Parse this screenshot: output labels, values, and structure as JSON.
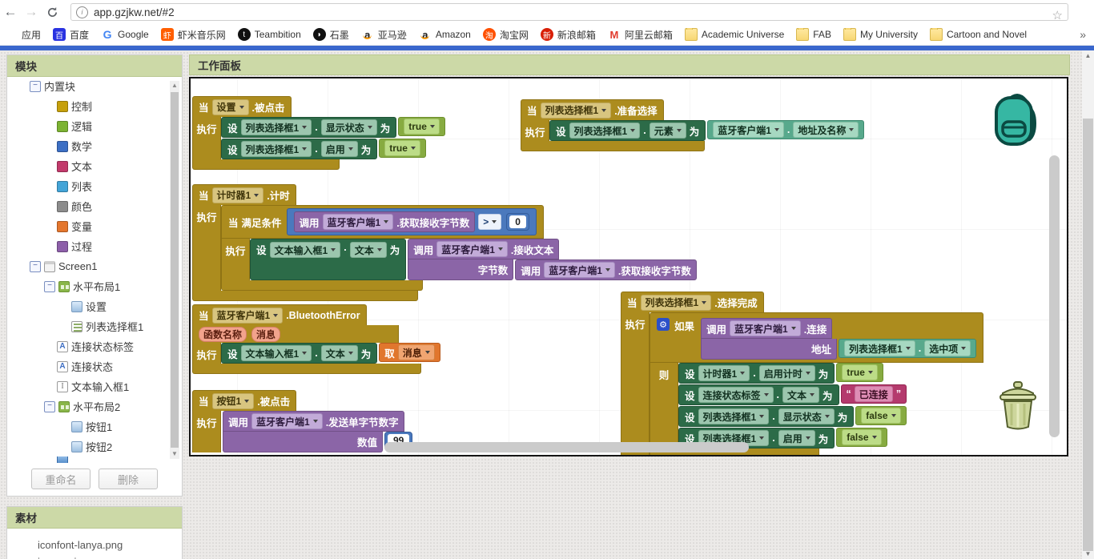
{
  "browser": {
    "url": "app.gzjkw.net/#2",
    "bookmarks": [
      {
        "label": "应用",
        "type": "grid",
        "color": "#ffffff",
        "glyph": ""
      },
      {
        "label": "百度",
        "type": "square",
        "color": "#2932e1",
        "glyph": "百"
      },
      {
        "label": "Google",
        "type": "google",
        "color": "#ffffff",
        "glyph": "G"
      },
      {
        "label": "虾米音乐网",
        "type": "square",
        "color": "#ff5e00",
        "glyph": "虾"
      },
      {
        "label": "Teambition",
        "type": "circle",
        "color": "#111111",
        "glyph": "t"
      },
      {
        "label": "石墨",
        "type": "circle",
        "color": "#111111",
        "glyph": "◗"
      },
      {
        "label": "亚马逊",
        "type": "amazon",
        "color": "#ffffff",
        "glyph": "a"
      },
      {
        "label": "Amazon",
        "type": "amazon",
        "color": "#ffffff",
        "glyph": "a"
      },
      {
        "label": "淘宝网",
        "type": "circle",
        "color": "#ff5000",
        "glyph": "淘"
      },
      {
        "label": "新浪邮箱",
        "type": "circle",
        "color": "#d81e06",
        "glyph": "新"
      },
      {
        "label": "阿里云邮箱",
        "type": "letter",
        "color": "#e23c2e",
        "glyph": "M"
      },
      {
        "label": "Academic Universe",
        "type": "folder",
        "color": "#f7d774",
        "glyph": ""
      },
      {
        "label": "FAB",
        "type": "folder",
        "color": "#f7d774",
        "glyph": ""
      },
      {
        "label": "My University",
        "type": "folder",
        "color": "#f7d774",
        "glyph": ""
      },
      {
        "label": "Cartoon and Novel",
        "type": "folder",
        "color": "#f7d774",
        "glyph": ""
      }
    ],
    "overflow_chevron": "»"
  },
  "modules_panel": {
    "title": "模块",
    "tree": [
      {
        "label": "内置块",
        "level": 0,
        "collapse": true,
        "icon": "none"
      },
      {
        "label": "控制",
        "level": 1,
        "collapse": false,
        "icon": "c#c6a00c"
      },
      {
        "label": "逻辑",
        "level": 1,
        "collapse": false,
        "icon": "c#7cb332"
      },
      {
        "label": "数学",
        "level": 1,
        "collapse": false,
        "icon": "c#3d6fc4"
      },
      {
        "label": "文本",
        "level": 1,
        "collapse": false,
        "icon": "c#c23a6b"
      },
      {
        "label": "列表",
        "level": 1,
        "collapse": false,
        "icon": "c#43a4d7"
      },
      {
        "label": "颜色",
        "level": 1,
        "collapse": false,
        "icon": "c#8c8c8c"
      },
      {
        "label": "变量",
        "level": 1,
        "collapse": false,
        "icon": "c#e4762d"
      },
      {
        "label": "过程",
        "level": 1,
        "collapse": false,
        "icon": "c#8d5fa9"
      },
      {
        "label": "Screen1",
        "level": 0,
        "collapse": true,
        "icon": "screen"
      },
      {
        "label": "水平布局1",
        "level": 1,
        "collapse": true,
        "icon": "layout"
      },
      {
        "label": "设置",
        "level": 2,
        "collapse": false,
        "icon": "button"
      },
      {
        "label": "列表选择框1",
        "level": 2,
        "collapse": false,
        "icon": "listpicker"
      },
      {
        "label": "连接状态标签",
        "level": 1,
        "collapse": false,
        "icon": "label"
      },
      {
        "label": "连接状态",
        "level": 1,
        "collapse": false,
        "icon": "label"
      },
      {
        "label": "文本输入框1",
        "level": 1,
        "collapse": false,
        "icon": "textbox"
      },
      {
        "label": "水平布局2",
        "level": 1,
        "collapse": true,
        "icon": "layout"
      },
      {
        "label": "按钮1",
        "level": 2,
        "collapse": false,
        "icon": "button"
      },
      {
        "label": "按钮2",
        "level": 2,
        "collapse": false,
        "icon": "button"
      },
      {
        "label": "",
        "level": 1,
        "collapse": false,
        "icon": "bluetooth",
        "partial": true
      }
    ],
    "rename_button": "重命名",
    "delete_button": "删除"
  },
  "assets_panel": {
    "title": "素材",
    "items": [
      "iconfont-lanya.png",
      "images.jpeg"
    ]
  },
  "workspace": {
    "title": "工作面板"
  },
  "kw": {
    "when": "当",
    "do": "执行",
    "set": "设",
    "to": "为",
    "then": "则",
    "if": "如果",
    "call": "调用",
    "get": "取",
    "dot": ".",
    "while_cond": "满足条件",
    "qo": "“",
    "qc": "”"
  },
  "blocks": {
    "g1": {
      "component": "设置",
      "event": ".被点击",
      "set1": {
        "comp": "列表选择框1",
        "prop": "显示状态",
        "val": "true"
      },
      "set2": {
        "comp": "列表选择框1",
        "prop": "启用",
        "val": "true"
      }
    },
    "g2": {
      "component": "列表选择框1",
      "event": ".准备选择",
      "set": {
        "comp": "列表选择框1",
        "prop": "元素"
      },
      "getter": {
        "comp": "蓝牙客户端1",
        "prop": "地址及名称"
      }
    },
    "g3": {
      "component": "计时器1",
      "event": ".计时",
      "call_bytes": {
        "comp": "蓝牙客户端1",
        "method": ".获取接收字节数"
      },
      "op": ">",
      "num": "0",
      "set": {
        "comp": "文本输入框1",
        "prop": "文本"
      },
      "call_recv": {
        "comp": "蓝牙客户端1",
        "method": ".接收文本",
        "arg": "字节数"
      },
      "call_bytes2": {
        "comp": "蓝牙客户端1",
        "method": ".获取接收字节数"
      }
    },
    "g4": {
      "component": "蓝牙客户端1",
      "event": ".BluetoothError",
      "params": [
        "函数名称",
        "消息"
      ],
      "set": {
        "comp": "文本输入框1",
        "prop": "文本"
      },
      "getvar": "消息"
    },
    "g5": {
      "component": "按钮1",
      "event": ".被点击",
      "call": {
        "comp": "蓝牙客户端1",
        "method": ".发送单字节数字",
        "arg": "数值",
        "value": "99"
      }
    },
    "g6": {
      "component": "列表选择框1",
      "event": ".选择完成",
      "call": {
        "comp": "蓝牙客户端1",
        "method": ".连接",
        "arg": "地址"
      },
      "getter": {
        "comp": "列表选择框1",
        "prop": "选中项"
      },
      "set1": {
        "comp": "计时器1",
        "prop": "启用计时",
        "val": "true"
      },
      "set2": {
        "comp": "连接状态标签",
        "prop": "文本",
        "val": "已连接"
      },
      "set3": {
        "comp": "列表选择框1",
        "prop": "显示状态",
        "val": "false"
      },
      "set4": {
        "comp": "列表选择框1",
        "prop": "启用",
        "val": "false"
      }
    }
  }
}
